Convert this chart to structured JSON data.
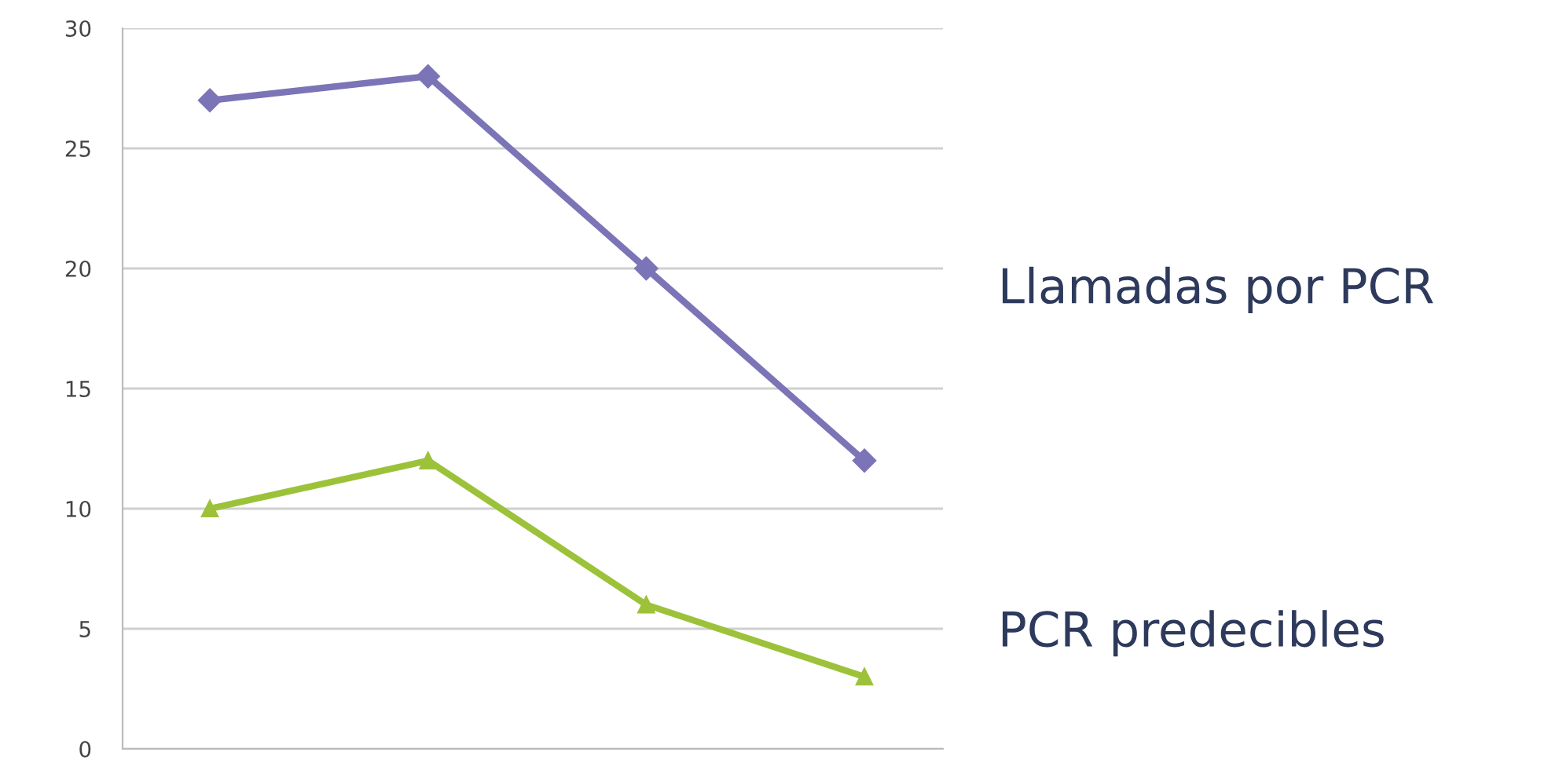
{
  "chart_data": {
    "type": "line",
    "categories": [
      null,
      null,
      null,
      null
    ],
    "series": [
      {
        "name": "Llamadas por PCR",
        "color": "#7b74b6",
        "marker": "diamond",
        "values": [
          27,
          28,
          20,
          12
        ]
      },
      {
        "name": "PCR predecibles",
        "color": "#9cc23a",
        "marker": "triangle",
        "values": [
          10,
          12,
          6,
          3
        ]
      }
    ],
    "ylim": [
      0,
      30
    ],
    "yticks": [
      0,
      5,
      10,
      15,
      20,
      25,
      30
    ],
    "grid": "y",
    "legend": false,
    "line_style": "solid"
  }
}
